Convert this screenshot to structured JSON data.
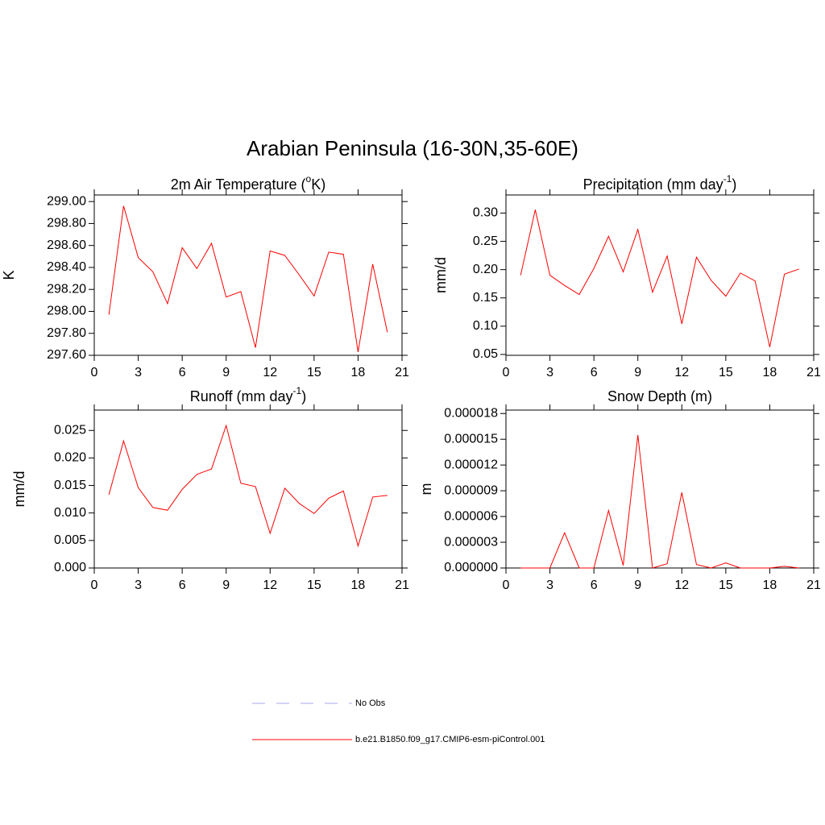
{
  "title": "Arabian Peninsula (16-30N,35-60E)",
  "chart_data": [
    {
      "type": "line",
      "title": [
        "2m Air Temperature (",
        "o",
        "K)"
      ],
      "ylabel": "K",
      "x": [
        1,
        2,
        3,
        4,
        5,
        6,
        7,
        8,
        9,
        10,
        11,
        12,
        13,
        14,
        15,
        16,
        17,
        18,
        19,
        20
      ],
      "series": [
        {
          "color": "#ff0000",
          "values": [
            297.97,
            298.96,
            298.49,
            298.36,
            298.07,
            298.58,
            298.39,
            298.62,
            298.13,
            298.18,
            297.67,
            298.55,
            298.51,
            298.33,
            298.14,
            298.54,
            298.52,
            297.63,
            298.43,
            297.81
          ]
        }
      ],
      "xlim": [
        0,
        21
      ],
      "xticks": [
        0,
        3,
        6,
        9,
        12,
        15,
        18,
        21
      ],
      "ylim": [
        297.6,
        299.06
      ],
      "yticks": [
        {
          "value": 297.6,
          "label": "297.60"
        },
        {
          "value": 297.8,
          "label": "297.80"
        },
        {
          "value": 298.0,
          "label": "298.00"
        },
        {
          "value": 298.2,
          "label": "298.20"
        },
        {
          "value": 298.4,
          "label": "298.40"
        },
        {
          "value": 298.6,
          "label": "298.60"
        },
        {
          "value": 298.8,
          "label": "298.80"
        },
        {
          "value": 299.0,
          "label": "299.00"
        }
      ]
    },
    {
      "type": "line",
      "title": [
        "Precipitation (mm day",
        "-1",
        ")"
      ],
      "ylabel": "mm/d",
      "x": [
        1,
        2,
        3,
        4,
        5,
        6,
        7,
        8,
        9,
        10,
        11,
        12,
        13,
        14,
        15,
        16,
        17,
        18,
        19,
        20
      ],
      "series": [
        {
          "color": "#ff0000",
          "values": [
            0.19,
            0.306,
            0.19,
            0.172,
            0.156,
            0.202,
            0.259,
            0.196,
            0.271,
            0.16,
            0.224,
            0.104,
            0.222,
            0.181,
            0.153,
            0.194,
            0.18,
            0.063,
            0.192,
            0.201
          ]
        }
      ],
      "xlim": [
        0,
        21
      ],
      "xticks": [
        0,
        3,
        6,
        9,
        12,
        15,
        18,
        21
      ],
      "ylim": [
        0.0485,
        0.332
      ],
      "yticks": [
        0.05,
        {
          "value": 0.1,
          "label": "0.10"
        },
        0.15,
        {
          "value": 0.2,
          "label": "0.20"
        },
        0.25,
        {
          "value": 0.3,
          "label": "0.30"
        }
      ]
    },
    {
      "type": "line",
      "title": [
        "Runoff (mm day",
        "-1",
        ")"
      ],
      "ylabel": "mm/d",
      "x": [
        1,
        2,
        3,
        4,
        5,
        6,
        7,
        8,
        9,
        10,
        11,
        12,
        13,
        14,
        15,
        16,
        17,
        18,
        19,
        20
      ],
      "series": [
        {
          "color": "#ff0000",
          "values": [
            0.0133,
            0.0231,
            0.0146,
            0.011,
            0.0105,
            0.0143,
            0.017,
            0.018,
            0.0259,
            0.0154,
            0.0148,
            0.0063,
            0.0145,
            0.0117,
            0.0099,
            0.0127,
            0.014,
            0.004,
            0.0129,
            0.0132
          ]
        }
      ],
      "xlim": [
        0,
        21
      ],
      "xticks": [
        0,
        3,
        6,
        9,
        12,
        15,
        18,
        21
      ],
      "ylim": [
        0,
        0.0287
      ],
      "yticks": [
        {
          "value": 0,
          "label": "0.000"
        },
        0.005,
        {
          "value": 0.01,
          "label": "0.010"
        },
        0.015,
        {
          "value": 0.02,
          "label": "0.020"
        },
        0.025
      ]
    },
    {
      "type": "line",
      "title": [
        "Snow Depth (m)"
      ],
      "ylabel": "m",
      "x": [
        1,
        2,
        3,
        4,
        5,
        6,
        7,
        8,
        9,
        10,
        11,
        12,
        13,
        14,
        15,
        16,
        17,
        18,
        19,
        20
      ],
      "series": [
        {
          "color": "#ff0000",
          "values": [
            0,
            0,
            0,
            4.1e-06,
            0,
            0,
            6.7e-06,
            3e-07,
            1.55e-05,
            0,
            5e-07,
            8.8e-06,
            4e-07,
            0,
            6e-07,
            0,
            0,
            0,
            2e-07,
            0
          ]
        }
      ],
      "xlim": [
        0,
        21
      ],
      "xticks": [
        0,
        3,
        6,
        9,
        12,
        15,
        18,
        21
      ],
      "ylim": [
        0,
        1.84e-05
      ],
      "yticks": [
        {
          "value": 0,
          "label": "0.000000"
        },
        {
          "value": 3e-06,
          "label": "0.000003"
        },
        {
          "value": 6e-06,
          "label": "0.000006"
        },
        {
          "value": 9e-06,
          "label": "0.000009"
        },
        {
          "value": 1.2e-05,
          "label": "0.000012"
        },
        {
          "value": 1.5e-05,
          "label": "0.000015"
        },
        {
          "value": 1.8e-05,
          "label": "0.000018"
        }
      ]
    }
  ],
  "legend": [
    {
      "name": "No Obs",
      "color": "#aaaaee",
      "dashed": true
    },
    {
      "name": "b.e21.B1850.f09_g17.CMIP6-esm-piControl.001",
      "color": "#ff0000",
      "dashed": false
    }
  ]
}
